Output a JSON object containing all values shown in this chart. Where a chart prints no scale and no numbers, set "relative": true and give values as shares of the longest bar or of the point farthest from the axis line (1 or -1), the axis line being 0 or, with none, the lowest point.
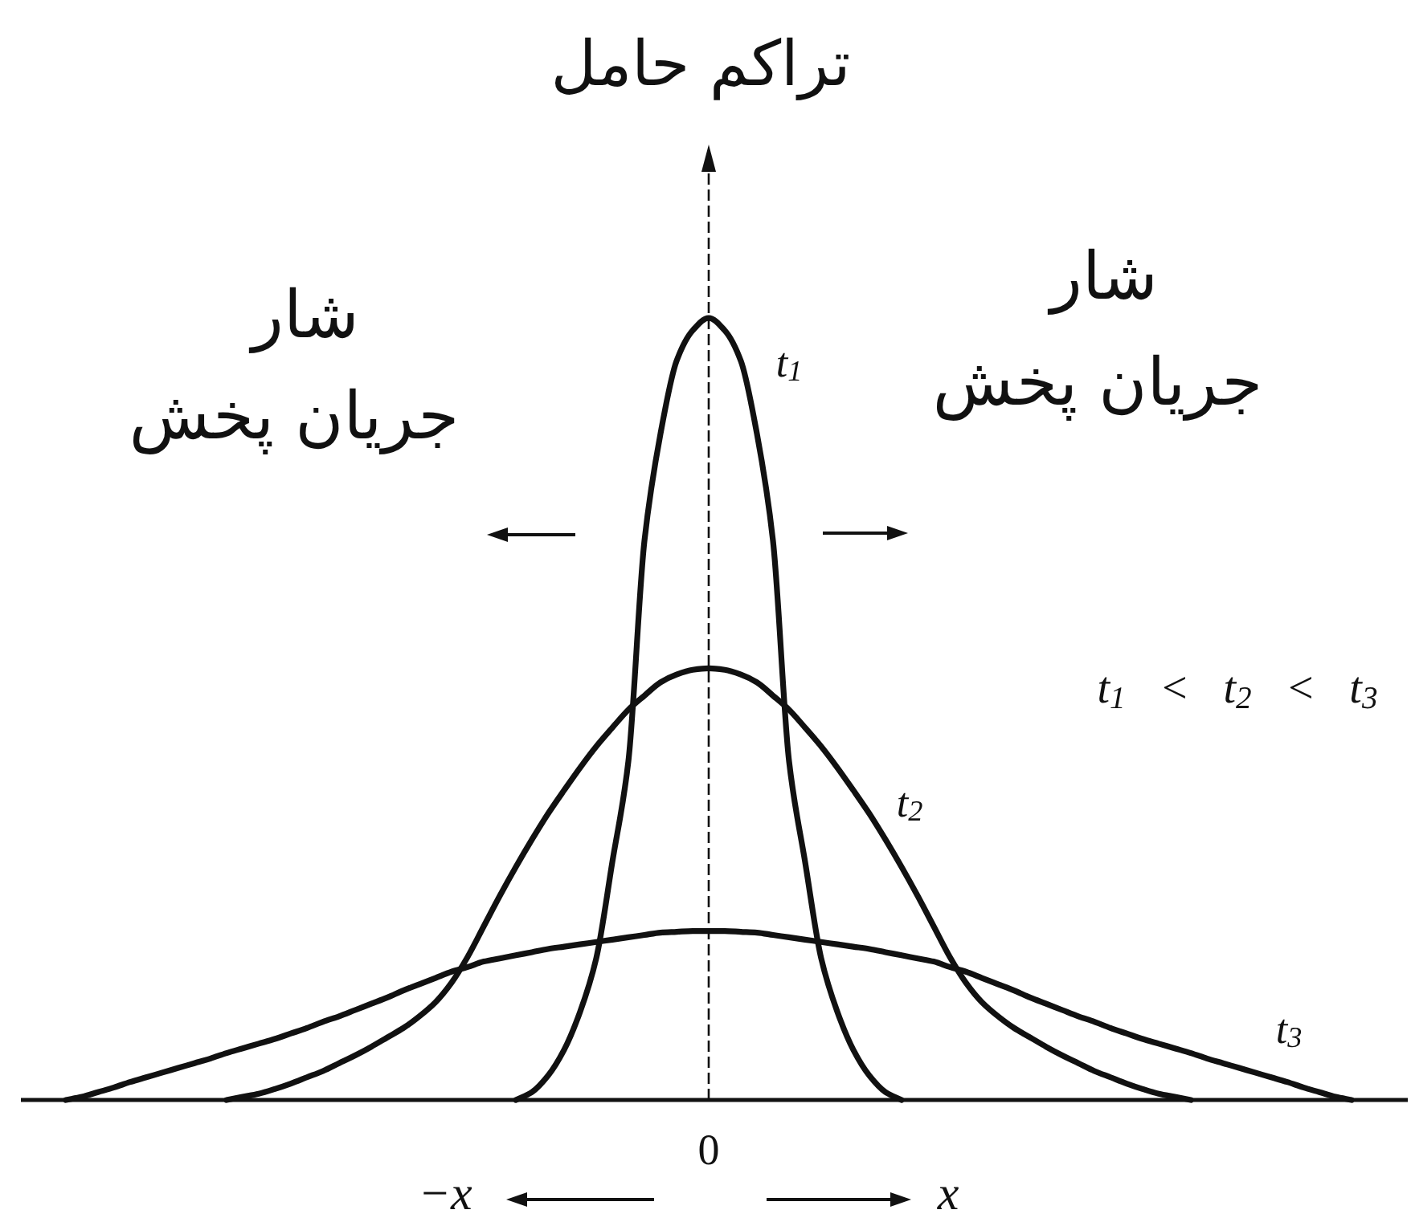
{
  "chart_data": {
    "type": "line",
    "relative": true,
    "ylabel": "تراکم حامل",
    "xlabel": "x",
    "categories": [
      null,
      null,
      null,
      null,
      null,
      null,
      null,
      null,
      null,
      null,
      null,
      null,
      null,
      null,
      null,
      null,
      null,
      null,
      null,
      null,
      null,
      null,
      null,
      null,
      null,
      null,
      null,
      null,
      null,
      null,
      null,
      null,
      null,
      null,
      null,
      null,
      null,
      null,
      null,
      null,
      null,
      null,
      null,
      null,
      null,
      null,
      null,
      null,
      null,
      null,
      null,
      null,
      null,
      null,
      null,
      null,
      null,
      null,
      null,
      null,
      null,
      null,
      null,
      null,
      null,
      null,
      null,
      null,
      null,
      null,
      null,
      null,
      null,
      null,
      null,
      null,
      null,
      null,
      null,
      null,
      null
    ],
    "series": [
      {
        "name": "t$_{1}$",
        "color": "#111111",
        "values": [
          null,
          null,
          null,
          null,
          null,
          null,
          null,
          null,
          null,
          null,
          null,
          null,
          null,
          null,
          null,
          null,
          null,
          null,
          null,
          null,
          null,
          null,
          null,
          null,
          null,
          null,
          null,
          null,
          0,
          0.01,
          0.031,
          0.064,
          0.113,
          0.181,
          0.304,
          0.433,
          0.715,
          0.852,
          0.945,
          0.984,
          1,
          0.984,
          0.945,
          0.852,
          0.715,
          0.433,
          0.304,
          0.181,
          0.113,
          0.064,
          0.031,
          0.01,
          0,
          null,
          null,
          null,
          null,
          null,
          null,
          null,
          null,
          null,
          null,
          null,
          null,
          null,
          null,
          null,
          null,
          null,
          null,
          null,
          null,
          null,
          null,
          null,
          null,
          null,
          null,
          null,
          null
        ]
      },
      {
        "name": "t$_{2}$",
        "color": "#111111",
        "values": [
          null,
          null,
          null,
          null,
          null,
          null,
          null,
          null,
          null,
          null,
          0,
          0.004,
          0.008,
          0.014,
          0.021,
          0.029,
          0.037,
          0.047,
          0.057,
          0.068,
          0.08,
          0.092,
          0.107,
          0.125,
          0.15,
          0.183,
          0.222,
          0.261,
          0.298,
          0.333,
          0.366,
          0.396,
          0.425,
          0.452,
          0.476,
          0.499,
          0.517,
          0.534,
          0.544,
          0.55,
          0.552,
          0.55,
          0.544,
          0.534,
          0.517,
          0.499,
          0.476,
          0.452,
          0.425,
          0.396,
          0.366,
          0.333,
          0.298,
          0.261,
          0.222,
          0.183,
          0.15,
          0.125,
          0.107,
          0.092,
          0.08,
          0.068,
          0.057,
          0.047,
          0.037,
          0.029,
          0.021,
          0.014,
          0.008,
          0.004,
          0,
          null,
          null,
          null,
          null,
          null,
          null,
          null,
          null,
          null,
          null
        ]
      },
      {
        "name": "t$_{3}$",
        "color": "#111111",
        "values": [
          0,
          0.004,
          0.01,
          0.016,
          0.023,
          0.029,
          0.035,
          0.041,
          0.047,
          0.053,
          0.06,
          0.066,
          0.072,
          0.078,
          0.085,
          0.092,
          0.1,
          0.107,
          0.115,
          0.123,
          0.131,
          0.14,
          0.148,
          0.156,
          0.164,
          0.17,
          0.177,
          0.181,
          0.185,
          0.189,
          0.193,
          0.196,
          0.199,
          0.202,
          0.205,
          0.208,
          0.211,
          0.214,
          0.215,
          0.216,
          0.216,
          0.216,
          0.215,
          0.214,
          0.211,
          0.208,
          0.205,
          0.202,
          0.199,
          0.196,
          0.193,
          0.189,
          0.185,
          0.181,
          0.177,
          0.17,
          0.164,
          0.156,
          0.148,
          0.14,
          0.131,
          0.123,
          0.115,
          0.107,
          0.1,
          0.092,
          0.085,
          0.078,
          0.072,
          0.066,
          0.06,
          0.053,
          0.047,
          0.041,
          0.035,
          0.029,
          0.023,
          0.016,
          0.01,
          0.004,
          0
        ]
      }
    ],
    "annotations": [
      "شار",
      "جریان پخش",
      "شار",
      "جریان پخش",
      "t$_{1}$ < t$_{2}$ < t$_{3}$",
      "−x",
      "0"
    ]
  }
}
